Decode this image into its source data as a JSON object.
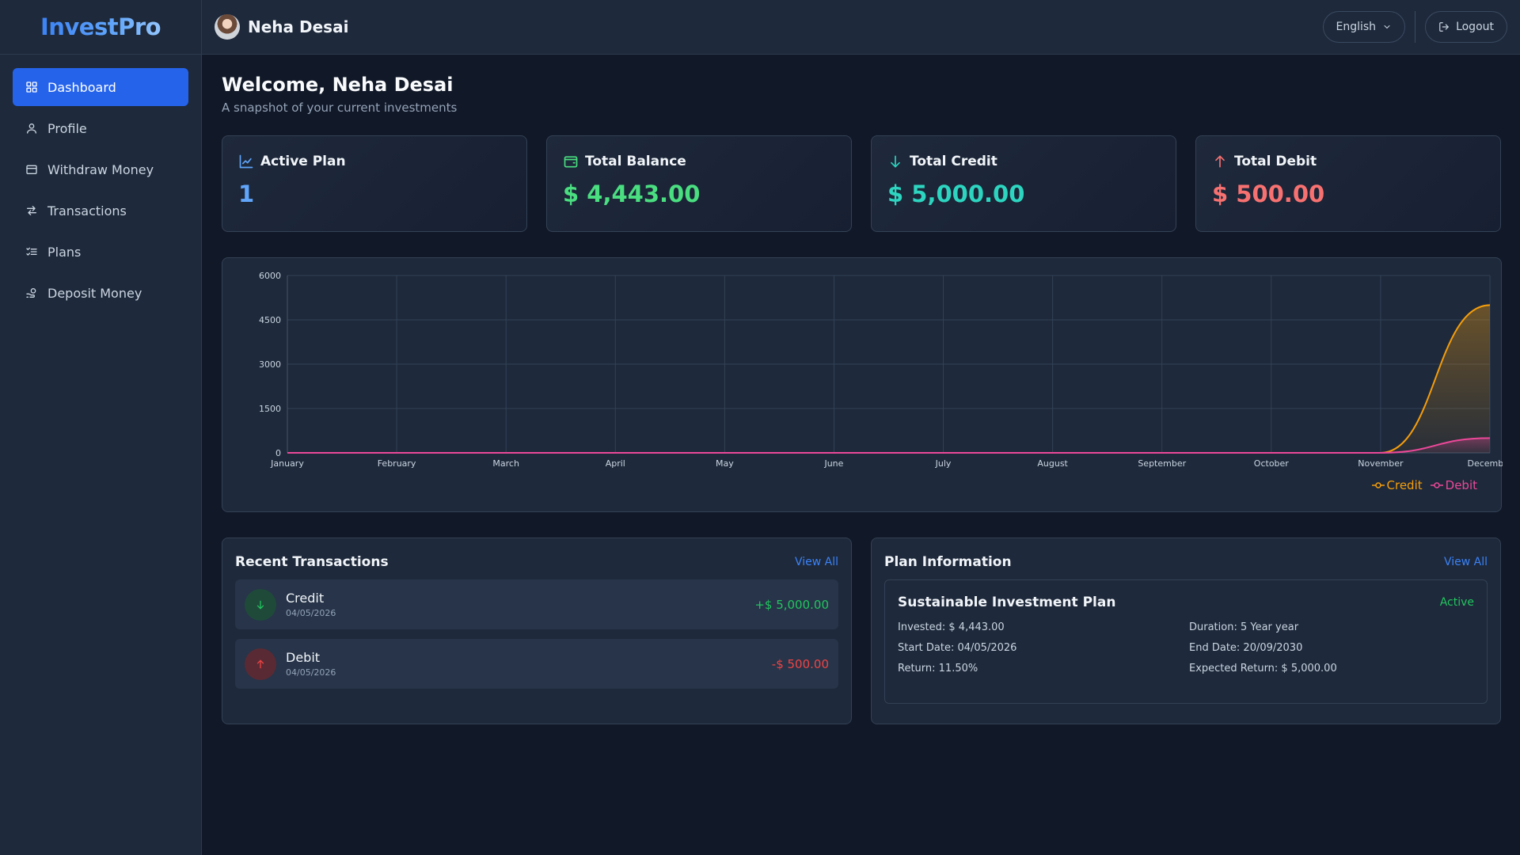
{
  "app": {
    "logo": "InvestPro"
  },
  "sidebar": {
    "items": [
      {
        "label": "Dashboard",
        "icon": "grid-icon",
        "active": true
      },
      {
        "label": "Profile",
        "icon": "user-icon"
      },
      {
        "label": "Withdraw Money",
        "icon": "wallet-icon"
      },
      {
        "label": "Transactions",
        "icon": "arrows-swap-icon"
      },
      {
        "label": "Plans",
        "icon": "list-check-icon"
      },
      {
        "label": "Deposit Money",
        "icon": "deposit-icon"
      }
    ]
  },
  "header": {
    "user_name": "Neha Desai",
    "language": "English",
    "logout_label": "Logout"
  },
  "main": {
    "welcome": "Welcome, Neha Desai",
    "subtitle": "A snapshot of your current investments"
  },
  "stats": [
    {
      "label": "Active Plan",
      "value": "1",
      "color": "#60a5fa",
      "icon": "line-chart-icon"
    },
    {
      "label": "Total Balance",
      "value": "$ 4,443.00",
      "color": "#4ade80",
      "icon": "wallet-icon"
    },
    {
      "label": "Total Credit",
      "value": "$ 5,000.00",
      "color": "#2dd4bf",
      "icon": "arrow-down-icon"
    },
    {
      "label": "Total Debit",
      "value": "$ 500.00",
      "color": "#f87171",
      "icon": "arrow-up-icon"
    }
  ],
  "chart_data": {
    "type": "area",
    "categories": [
      "January",
      "February",
      "March",
      "April",
      "May",
      "June",
      "July",
      "August",
      "September",
      "October",
      "November",
      "December"
    ],
    "y_ticks": [
      "0",
      "1500",
      "3000",
      "4500",
      "6000"
    ],
    "ylim": [
      0,
      6000
    ],
    "grid": true,
    "legend_position": "bottom-right",
    "series": [
      {
        "name": "Credit",
        "values": [
          0,
          0,
          0,
          0,
          0,
          0,
          0,
          0,
          0,
          0,
          0,
          5000
        ],
        "color": "#f59e0b"
      },
      {
        "name": "Debit",
        "values": [
          0,
          0,
          0,
          0,
          0,
          0,
          0,
          0,
          0,
          0,
          0,
          500
        ],
        "color": "#ec4899"
      }
    ]
  },
  "transactions": {
    "title": "Recent Transactions",
    "view_all": "View All",
    "items": [
      {
        "type": "Credit",
        "date": "04/05/2026",
        "amount": "+$ 5,000.00",
        "color": "#22c55e",
        "icon": "arrow-down-icon"
      },
      {
        "type": "Debit",
        "date": "04/05/2026",
        "amount": "-$ 500.00",
        "color": "#ef4444",
        "icon": "arrow-up-icon"
      }
    ]
  },
  "plan_info": {
    "title": "Plan Information",
    "view_all": "View All",
    "name": "Sustainable Investment Plan",
    "status": "Active",
    "invested": "Invested: $ 4,443.00",
    "duration": "Duration: 5 Year year",
    "start_date": "Start Date: 04/05/2026",
    "end_date": "End Date: 20/09/2030",
    "return_rate": "Return: 11.50%",
    "expected_return": "Expected Return: $ 5,000.00"
  }
}
